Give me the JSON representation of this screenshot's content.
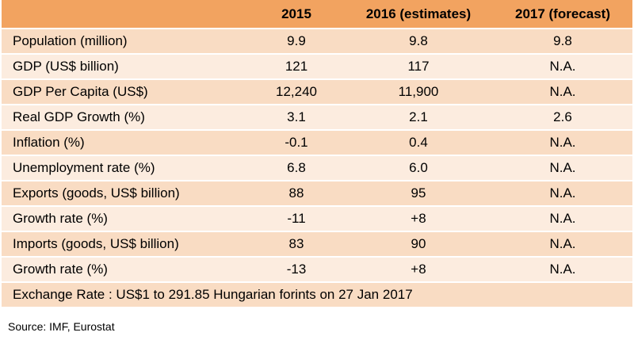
{
  "table": {
    "headers": [
      "",
      "2015",
      "2016 (estimates)",
      "2017 (forecast)"
    ],
    "rows": [
      {
        "label": "Population  (million)",
        "v2015": "9.9",
        "v2016": "9.8",
        "v2017": "9.8"
      },
      {
        "label": "GDP (US$ billion)",
        "v2015": "121",
        "v2016": "117",
        "v2017": "N.A."
      },
      {
        "label": "GDP Per Capita (US$)",
        "v2015": "12,240",
        "v2016": "11,900",
        "v2017": "N.A."
      },
      {
        "label": "Real GDP Growth (%)",
        "v2015": "3.1",
        "v2016": "2.1",
        "v2017": "2.6"
      },
      {
        "label": "Inflation (%)",
        "v2015": "-0.1",
        "v2016": "0.4",
        "v2017": "N.A."
      },
      {
        "label": "Unemployment rate (%)",
        "v2015": "6.8",
        "v2016": "6.0",
        "v2017": "N.A."
      },
      {
        "label": "Exports (goods, US$ billion)",
        "v2015": "88",
        "v2016": "95",
        "v2017": "N.A."
      },
      {
        "label": "Growth rate (%)",
        "v2015": "-11",
        "v2016": "+8",
        "v2017": "N.A."
      },
      {
        "label": "Imports (goods, US$ billion)",
        "v2015": "83",
        "v2016": "90",
        "v2017": "N.A."
      },
      {
        "label": "Growth rate (%)",
        "v2015": "-13",
        "v2016": "+8",
        "v2017": "N.A."
      }
    ],
    "exchange_rate": "Exchange Rate : US$1 to 291.85 Hungarian forints on 27 Jan 2017"
  },
  "source": "Source: IMF, Eurostat"
}
